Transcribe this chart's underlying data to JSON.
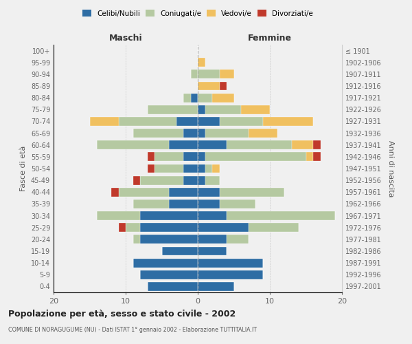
{
  "age_groups": [
    "0-4",
    "5-9",
    "10-14",
    "15-19",
    "20-24",
    "25-29",
    "30-34",
    "35-39",
    "40-44",
    "45-49",
    "50-54",
    "55-59",
    "60-64",
    "65-69",
    "70-74",
    "75-79",
    "80-84",
    "85-89",
    "90-94",
    "95-99",
    "100+"
  ],
  "birth_years": [
    "1997-2001",
    "1992-1996",
    "1987-1991",
    "1982-1986",
    "1977-1981",
    "1972-1976",
    "1967-1971",
    "1962-1966",
    "1957-1961",
    "1952-1956",
    "1947-1951",
    "1942-1946",
    "1937-1941",
    "1932-1936",
    "1927-1931",
    "1922-1926",
    "1917-1921",
    "1912-1916",
    "1907-1911",
    "1902-1906",
    "≤ 1901"
  ],
  "male_celibi": [
    7,
    8,
    9,
    5,
    8,
    8,
    8,
    4,
    4,
    2,
    2,
    2,
    4,
    2,
    3,
    0,
    1,
    0,
    0,
    0,
    0
  ],
  "male_coniugati": [
    0,
    0,
    0,
    0,
    1,
    2,
    6,
    5,
    7,
    6,
    4,
    4,
    10,
    7,
    8,
    7,
    1,
    0,
    1,
    0,
    0
  ],
  "male_vedovi": [
    0,
    0,
    0,
    0,
    0,
    0,
    0,
    0,
    0,
    0,
    0,
    0,
    0,
    0,
    4,
    0,
    0,
    0,
    0,
    0,
    0
  ],
  "male_divorziati": [
    0,
    0,
    0,
    0,
    0,
    1,
    0,
    0,
    1,
    1,
    1,
    1,
    0,
    0,
    0,
    0,
    0,
    0,
    0,
    0,
    0
  ],
  "female_nubili": [
    5,
    9,
    9,
    4,
    4,
    7,
    4,
    3,
    3,
    1,
    1,
    1,
    4,
    1,
    3,
    1,
    0,
    0,
    0,
    0,
    0
  ],
  "female_coniugate": [
    0,
    0,
    0,
    0,
    3,
    7,
    15,
    5,
    9,
    2,
    1,
    14,
    9,
    6,
    6,
    5,
    2,
    0,
    3,
    0,
    0
  ],
  "female_vedove": [
    0,
    0,
    0,
    0,
    0,
    0,
    0,
    0,
    0,
    0,
    1,
    1,
    3,
    4,
    7,
    4,
    3,
    3,
    2,
    1,
    0
  ],
  "female_divorziate": [
    0,
    0,
    0,
    0,
    0,
    0,
    0,
    0,
    0,
    0,
    0,
    1,
    1,
    0,
    0,
    0,
    0,
    1,
    0,
    0,
    0
  ],
  "color_celibi": "#2e6da4",
  "color_coniugati": "#b5c9a1",
  "color_vedovi": "#f0c060",
  "color_divorziati": "#c0392b",
  "xlim": 20,
  "title": "Popolazione per età, sesso e stato civile - 2002",
  "subtitle": "COMUNE DI NORAGUGUME (NU) - Dati ISTAT 1° gennaio 2002 - Elaborazione TUTTITALIA.IT",
  "label_maschi": "Maschi",
  "label_femmine": "Femmine",
  "label_fasce": "Fasce di età",
  "label_anni": "Anni di nascita",
  "legend_labels": [
    "Celibi/Nubili",
    "Coniugati/e",
    "Vedovi/e",
    "Divorziati/e"
  ],
  "bg_color": "#f0f0f0",
  "bar_height": 0.75
}
